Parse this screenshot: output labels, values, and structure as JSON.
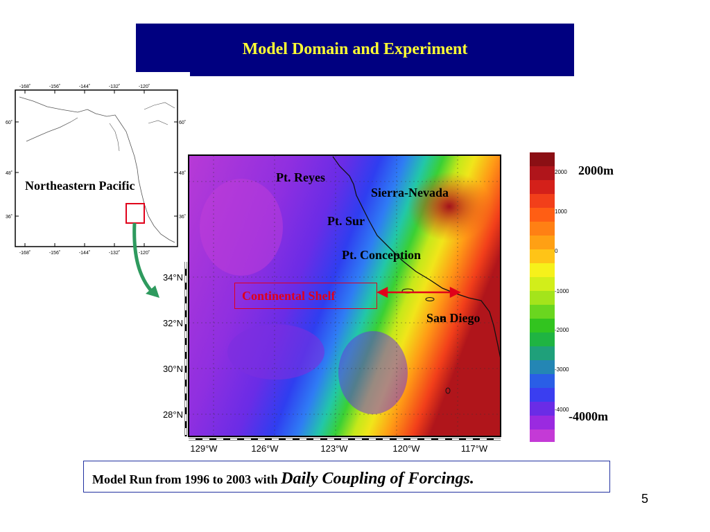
{
  "slide": {
    "title": "Model Domain and Experiment",
    "inset_map": {
      "region_label": "Northeastern Pacific",
      "lon_ticks": [
        "-168˚",
        "-156˚",
        "-144˚",
        "-132˚",
        "-120˚"
      ],
      "lat_ticks": [
        "60˚",
        "48˚",
        "36˚"
      ]
    },
    "main_map": {
      "lat_ticks": [
        "34°N",
        "32°N",
        "30°N",
        "28°N"
      ],
      "lon_ticks": [
        "129°W",
        "126°W",
        "123°W",
        "120°W",
        "117°W"
      ],
      "places": {
        "pt_reyes": "Pt. Reyes",
        "sierra_nevada": "Sierra-Nevada",
        "pt_sur": "Pt. Sur",
        "pt_conception": "Pt. Conception",
        "san_diego": "San Diego",
        "continental_shelf": "Continental Shelf"
      }
    },
    "colorbar": {
      "top_label": "2000m",
      "bottom_label": "-4000m",
      "ticks": [
        "2000",
        "1000",
        "0",
        "-1000",
        "-2000",
        "-3000",
        "-4000"
      ]
    },
    "caption": {
      "plain": "Model Run from 1996 to 2003 with ",
      "emphasis": "Daily Coupling of Forcings",
      "end": "."
    },
    "page_number": "5",
    "colors": {
      "title_bg": "#000080",
      "title_text": "#ffff33",
      "shelf_red": "#e0001a",
      "arrow_green": "#2e9a5e"
    }
  }
}
